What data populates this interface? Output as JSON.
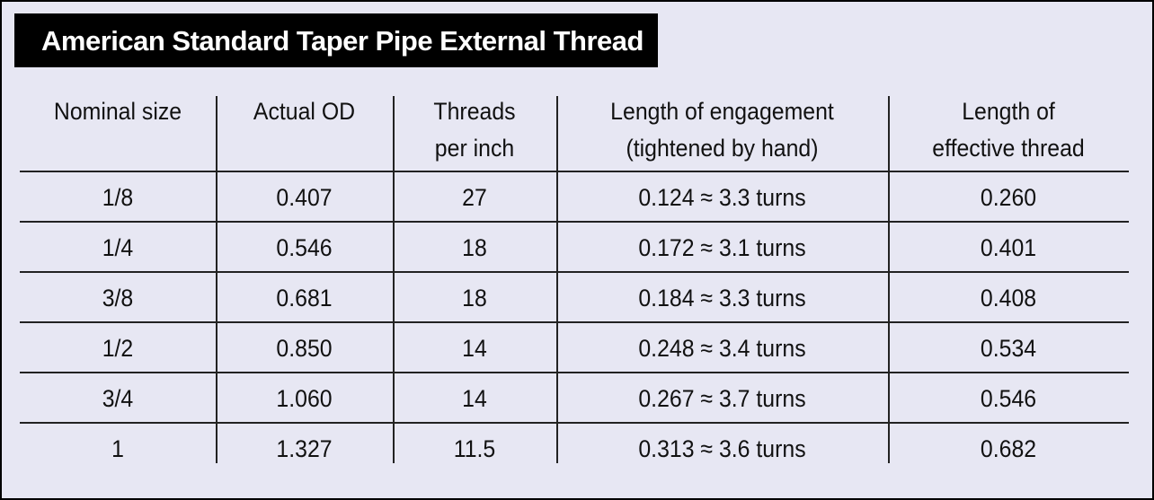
{
  "title": "American Standard Taper Pipe External Thread",
  "table": {
    "headers": [
      [
        "Nominal size"
      ],
      [
        "Actual OD"
      ],
      [
        "Threads",
        "per inch"
      ],
      [
        "Length of engagement",
        "(tightened by hand)"
      ],
      [
        "Length of",
        "effective thread"
      ]
    ],
    "rows": [
      [
        "1/8",
        "0.407",
        "27",
        "0.124 ≈ 3.3 turns",
        "0.260"
      ],
      [
        "1/4",
        "0.546",
        "18",
        "0.172 ≈ 3.1 turns",
        "0.401"
      ],
      [
        "3/8",
        "0.681",
        "18",
        "0.184 ≈ 3.3 turns",
        "0.408"
      ],
      [
        "1/2",
        "0.850",
        "14",
        "0.248 ≈ 3.4 turns",
        "0.534"
      ],
      [
        "3/4",
        "1.060",
        "14",
        "0.267 ≈ 3.7 turns",
        "0.546"
      ],
      [
        "1",
        "1.327",
        "11.5",
        "0.313 ≈ 3.6 turns",
        "0.682"
      ]
    ]
  }
}
